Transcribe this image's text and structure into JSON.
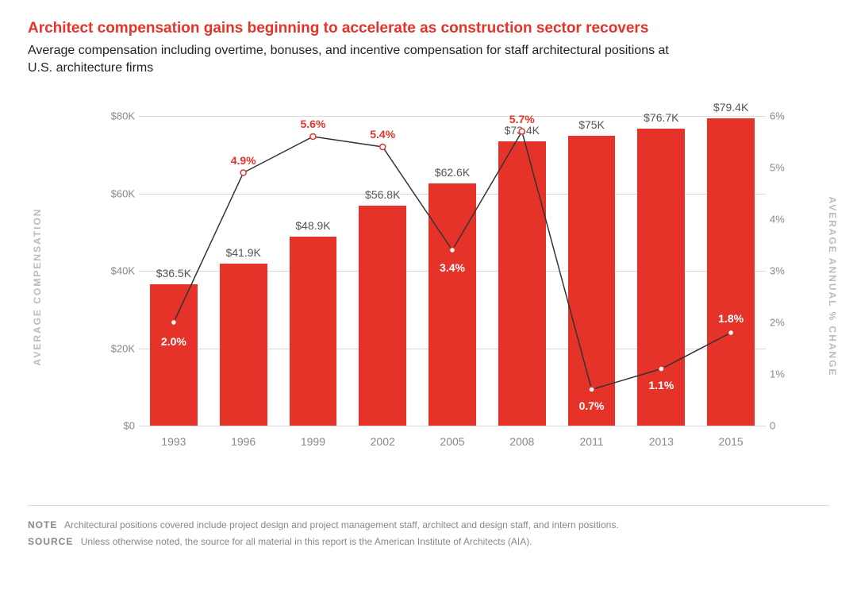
{
  "title": "Architect compensation gains beginning to accelerate as construction sector recovers",
  "subtitle": "Average compensation including overtime, bonuses, and incentive compensation for staff architectural positions at U.S. architecture firms",
  "chart": {
    "type": "bar+line",
    "categories": [
      "1993",
      "1996",
      "1999",
      "2002",
      "2005",
      "2008",
      "2011",
      "2013",
      "2015"
    ],
    "bar_values": [
      36.5,
      41.9,
      48.9,
      56.8,
      62.6,
      73.4,
      75,
      76.7,
      79.4
    ],
    "bar_labels": [
      "$36.5K",
      "$41.9K",
      "$48.9K",
      "$56.8K",
      "$62.6K",
      "$73.4K",
      "$75K",
      "$76.7K",
      "$79.4K"
    ],
    "bar_color": "#e63329",
    "bar_width_ratio": 0.68,
    "line_values": [
      2.0,
      4.9,
      5.6,
      5.4,
      3.4,
      5.7,
      0.7,
      1.1,
      1.8
    ],
    "line_labels": [
      "2.0%",
      "4.9%",
      "5.6%",
      "5.4%",
      "3.4%",
      "5.7%",
      "0.7%",
      "1.1%",
      "1.8%"
    ],
    "line_label_colors": [
      "#ffffff",
      "#e63329",
      "#e63329",
      "#e63329",
      "#ffffff",
      "#e63329",
      "#ffffff",
      "#ffffff",
      "#ffffff"
    ],
    "line_label_dy": [
      24,
      -16,
      -16,
      -16,
      22,
      -16,
      20,
      20,
      -18
    ],
    "line_color": "#333333",
    "line_width": 1.5,
    "marker_fill": "#ffffff",
    "marker_stroke": "#e63329",
    "marker_radius": 3.5,
    "y_left": {
      "min": 0,
      "max": 80,
      "step": 20,
      "ticks": [
        "$0",
        "$20K",
        "$40K",
        "$60K",
        "$80K"
      ],
      "label": "AVERAGE COMPENSATION"
    },
    "y_right": {
      "min": 0,
      "max": 6,
      "step": 1,
      "ticks": [
        "0",
        "1%",
        "2%",
        "3%",
        "4%",
        "5%",
        "6%"
      ],
      "label": "AVERAGE ANNUAL % CHANGE"
    },
    "grid_color": "#d9d9d9",
    "background_color": "#ffffff"
  },
  "footer": {
    "note_label": "NOTE",
    "note_text": "Architectural positions covered include project design and project management staff, architect and design staff, and intern positions.",
    "source_label": "SOURCE",
    "source_text": "Unless otherwise noted, the source for all material in this report is the American Institute of Architects (AIA)."
  }
}
